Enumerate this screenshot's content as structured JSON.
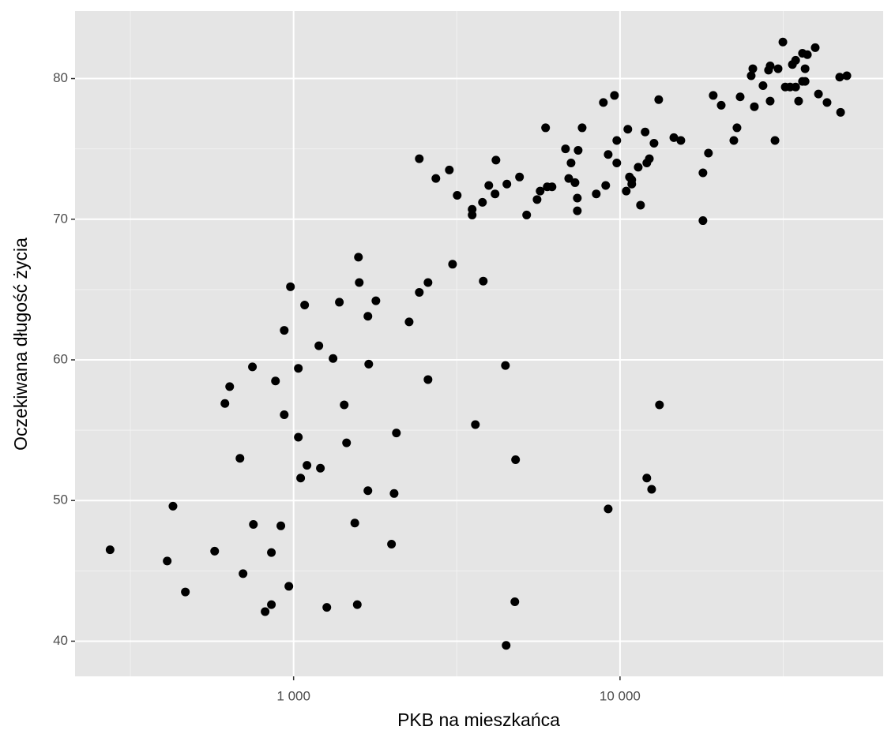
{
  "chart_data": {
    "type": "scatter",
    "x_label": "PKB na mieszkańca",
    "y_label": "Oczekiwana długość życia",
    "log_x": true,
    "grid": true,
    "color": "#000000",
    "xlim": [
      214,
      64000
    ],
    "ylim": [
      37.5,
      84.8
    ],
    "xticks": [
      {
        "value": 1000,
        "label": "1 000"
      },
      {
        "value": 10000,
        "label": "10 000"
      }
    ],
    "yticks": [
      40,
      50,
      60,
      70,
      80
    ],
    "x": [
      274,
      410,
      427,
      466,
      573,
      616,
      637,
      685,
      700,
      748,
      753,
      818,
      855,
      855,
      880,
      914,
      936,
      936,
      967,
      978,
      1034,
      1034,
      1051,
      1081,
      1099,
      1195,
      1208,
      1264,
      1321,
      1381,
      1429,
      1453,
      1540,
      1567,
      1580,
      1589,
      1689,
      1699,
      1689,
      1787,
      1995,
      2032,
      2065,
      2259,
      2427,
      2427,
      2581,
      2581,
      2728,
      3000,
      3069,
      3171,
      3524,
      3524,
      3605,
      3790,
      3811,
      3963,
      4142,
      4168,
      4456,
      4479,
      4502,
      4762,
      4787,
      4922,
      5176,
      5571,
      5693,
      5916,
      5984,
      6190,
      6808,
      6964,
      7080,
      7280,
      7400,
      7400,
      7443,
      7656,
      8458,
      8892,
      9040,
      9200,
      9200,
      9616,
      9775,
      9775,
      10450,
      10567,
      10690,
      10864,
      10864,
      11370,
      11557,
      11940,
      12080,
      12080,
      12300,
      12500,
      12710,
      13140,
      13210,
      14620,
      15360,
      17950,
      17950,
      18660,
      19300,
      20420,
      22320,
      22820,
      23340,
      25230,
      25520,
      25800,
      27420,
      28510,
      28840,
      28840,
      29840,
      30500,
      31550,
      32080,
      33190,
      33740,
      34520,
      34520,
      35250,
      36230,
      36230,
      36900,
      37500,
      36900,
      39630,
      40550,
      43080,
      47100,
      47400,
      49550
    ],
    "values": [
      46.5,
      45.7,
      49.6,
      43.5,
      46.4,
      56.9,
      58.1,
      53.0,
      44.8,
      59.5,
      48.3,
      42.1,
      42.6,
      46.3,
      58.5,
      48.2,
      62.1,
      56.1,
      43.9,
      65.2,
      59.4,
      54.5,
      51.6,
      63.9,
      52.5,
      61.0,
      52.3,
      42.4,
      60.1,
      64.1,
      56.8,
      54.1,
      48.4,
      42.6,
      67.3,
      65.5,
      63.1,
      59.7,
      50.7,
      64.2,
      46.9,
      50.5,
      54.8,
      62.7,
      64.8,
      74.3,
      65.5,
      58.6,
      72.9,
      73.5,
      66.8,
      71.7,
      70.7,
      70.3,
      55.4,
      71.2,
      65.6,
      72.4,
      71.8,
      74.2,
      59.6,
      39.7,
      72.5,
      42.8,
      52.9,
      73.0,
      70.3,
      71.4,
      72.0,
      76.5,
      72.3,
      72.3,
      75.0,
      72.9,
      74.0,
      72.6,
      71.5,
      70.6,
      74.9,
      76.5,
      71.8,
      78.3,
      72.4,
      74.6,
      49.4,
      78.8,
      75.6,
      74.0,
      72.0,
      76.4,
      73.0,
      72.8,
      72.5,
      73.7,
      71.0,
      76.2,
      74.0,
      51.6,
      74.3,
      50.8,
      75.4,
      78.5,
      56.8,
      75.8,
      75.6,
      73.3,
      69.9,
      74.7,
      78.8,
      78.1,
      75.6,
      76.5,
      78.7,
      80.2,
      80.7,
      78.0,
      79.5,
      80.6,
      80.9,
      78.4,
      75.6,
      80.7,
      82.6,
      79.4,
      79.4,
      81.0,
      81.3,
      79.4,
      78.4,
      81.8,
      79.8,
      80.7,
      81.7,
      79.8,
      82.2,
      78.9,
      78.3,
      80.1,
      77.6,
      80.2
    ]
  }
}
